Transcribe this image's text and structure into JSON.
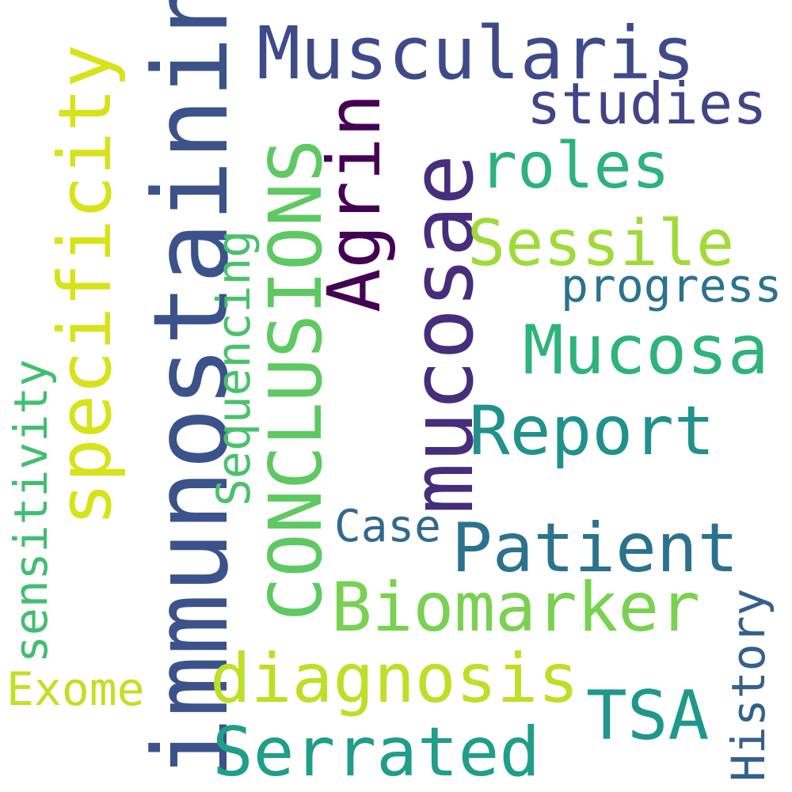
{
  "wordcloud": {
    "words": {
      "immunostaining": "immunostaining",
      "mucosae": "mucosae",
      "muscularis": "Muscularis",
      "specificity": "specificity",
      "conclusions": "CONCLUSIONS",
      "agrin": "Agrin",
      "roles": "roles",
      "studies": "studies",
      "sessile": "Sessile",
      "progress": "progress",
      "mucosa": "Mucosa",
      "report": "Report",
      "patient": "Patient",
      "case": "Case",
      "biomarker": "Biomarker",
      "diagnosis": "diagnosis",
      "tsa": "TSA",
      "serrated": "Serrated",
      "history": "History",
      "sequencing": "Sequencing",
      "sensitivity": "sensitivity",
      "exome": "Exome"
    },
    "colors": {
      "immunostaining": "#3b528b",
      "mucosae": "#472d7b",
      "muscularis": "#3e4a89",
      "specificity": "#d8e219",
      "conclusions": "#5ec962",
      "agrin": "#440154",
      "roles": "#2db27d",
      "studies": "#414487",
      "sessile": "#a0da39",
      "progress": "#2c728e",
      "mucosa": "#2eb37c",
      "report": "#21918c",
      "patient": "#2c728e",
      "case": "#31688e",
      "biomarker": "#7ad151",
      "diagnosis": "#bddf26",
      "tsa": "#1f988b",
      "serrated": "#1f9e89",
      "history": "#355f8d",
      "sequencing": "#4ac16d",
      "sensitivity": "#42be71",
      "exome": "#c2df23"
    }
  }
}
